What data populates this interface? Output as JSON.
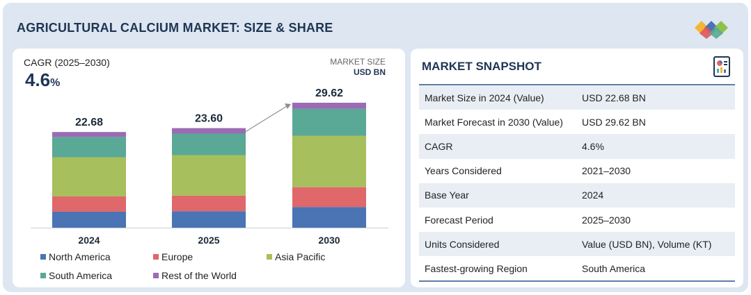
{
  "title": "AGRICULTURAL CALCIUM MARKET: SIZE & SHARE",
  "cagr": {
    "label": "CAGR (2025–2030)",
    "value": "4.6",
    "unit": "%"
  },
  "market_size": {
    "label": "MARKET SIZE",
    "unit": "USD BN"
  },
  "colors": {
    "north_america": "#4a74b3",
    "europe": "#e0676a",
    "asia_pacific": "#a7bf5c",
    "south_america": "#5aa896",
    "rest_of_world": "#9b6cb5",
    "header": "#1f3554",
    "frame": "#dde6f1"
  },
  "chart_data": {
    "type": "bar",
    "stacked": true,
    "categories": [
      "2024",
      "2025",
      "2030"
    ],
    "totals": [
      "22.68",
      "23.60",
      "29.62"
    ],
    "total_values": [
      22.68,
      23.6,
      29.62
    ],
    "series": [
      {
        "name": "North America",
        "key": "north_america",
        "values": [
          3.8,
          3.9,
          4.9
        ]
      },
      {
        "name": "Europe",
        "key": "europe",
        "values": [
          3.6,
          3.7,
          4.7
        ]
      },
      {
        "name": "Asia Pacific",
        "key": "asia_pacific",
        "values": [
          9.3,
          9.6,
          12.2
        ]
      },
      {
        "name": "South America",
        "key": "south_america",
        "values": [
          4.8,
          5.1,
          6.4
        ]
      },
      {
        "name": "Rest of the World",
        "key": "rest_of_world",
        "values": [
          1.18,
          1.3,
          1.42
        ]
      }
    ],
    "ylim": [
      0,
      29.62
    ]
  },
  "legend": [
    {
      "label": "North America",
      "key": "north_america"
    },
    {
      "label": "Europe",
      "key": "europe"
    },
    {
      "label": "Asia Pacific",
      "key": "asia_pacific"
    },
    {
      "label": "South America",
      "key": "south_america"
    },
    {
      "label": "Rest of the World",
      "key": "rest_of_world"
    }
  ],
  "snapshot": {
    "title": "MARKET SNAPSHOT",
    "rows": [
      {
        "key": "Market Size in 2024 (Value)",
        "value": "USD 22.68 BN"
      },
      {
        "key": "Market Forecast in 2030 (Value)",
        "value": "USD 29.62 BN"
      },
      {
        "key": "CAGR",
        "value": "4.6%"
      },
      {
        "key": "Years Considered",
        "value": "2021–2030"
      },
      {
        "key": "Base Year",
        "value": "2024"
      },
      {
        "key": "Forecast Period",
        "value": "2025–2030"
      },
      {
        "key": "Units Considered",
        "value": "Value (USD BN), Volume (KT)"
      },
      {
        "key": "Fastest-growing Region",
        "value": "South America"
      }
    ]
  }
}
